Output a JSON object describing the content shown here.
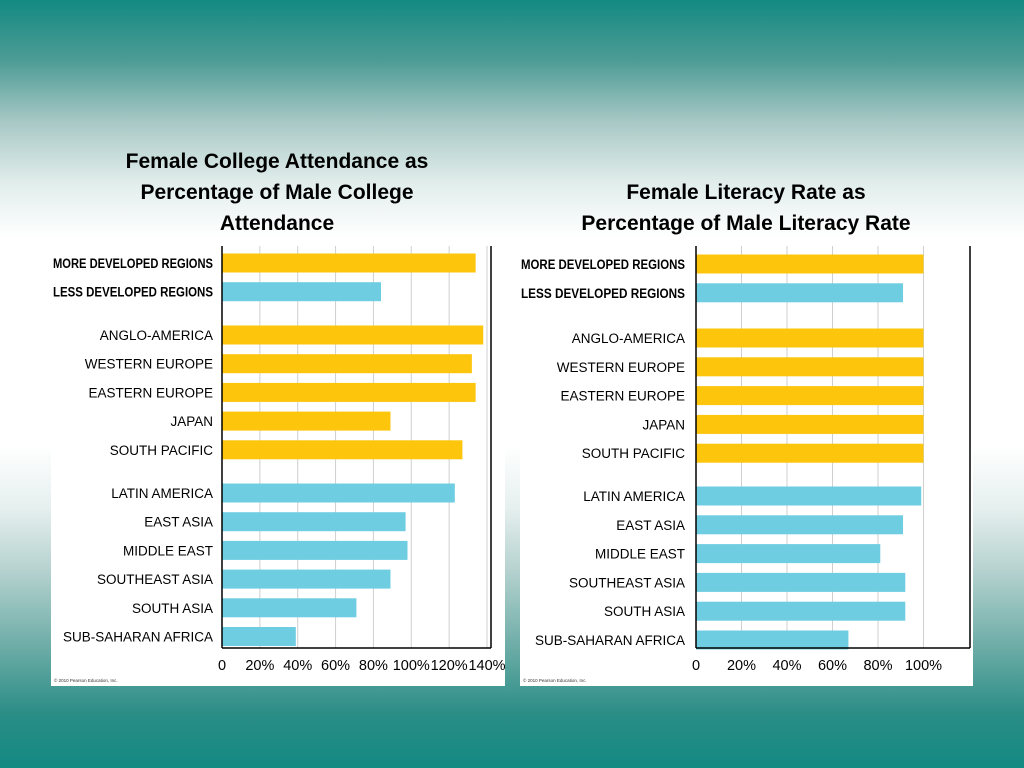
{
  "titles": {
    "left_lines": [
      "Female College Attendance as",
      "Percentage of Male College",
      "Attendance"
    ],
    "right_lines": [
      "Female Literacy Rate as",
      "Percentage of Male Literacy Rate"
    ]
  },
  "colors": {
    "developed": "#fdc50c",
    "developing": "#6fcde2",
    "grid": "#cfcfcf",
    "frame": "#000000",
    "text": "#000000"
  },
  "chart_data": [
    {
      "type": "bar",
      "orientation": "horizontal",
      "title": "Female College Attendance as Percentage of Male College Attendance",
      "categories": [
        "MORE DEVELOPED REGIONS",
        "LESS DEVELOPED REGIONS",
        "ANGLO-AMERICA",
        "WESTERN EUROPE",
        "EASTERN EUROPE",
        "JAPAN",
        "SOUTH PACIFIC",
        "LATIN AMERICA",
        "EAST ASIA",
        "MIDDLE EAST",
        "SOUTHEAST ASIA",
        "SOUTH ASIA",
        "SUB-SAHARAN AFRICA"
      ],
      "bold_categories": [
        "MORE DEVELOPED REGIONS",
        "LESS DEVELOPED REGIONS"
      ],
      "groups": [
        [
          0,
          1
        ],
        [
          2,
          3,
          4,
          5,
          6
        ],
        [
          7,
          8,
          9,
          10,
          11,
          12
        ]
      ],
      "values": [
        134,
        84,
        138,
        132,
        134,
        89,
        127,
        123,
        97,
        98,
        89,
        71,
        39
      ],
      "bar_color_keys": [
        "developed",
        "developing",
        "developed",
        "developed",
        "developed",
        "developed",
        "developed",
        "developing",
        "developing",
        "developing",
        "developing",
        "developing",
        "developing"
      ],
      "xlim": [
        0,
        140
      ],
      "tick_values": [
        0,
        20,
        40,
        60,
        80,
        100,
        120,
        140
      ],
      "tick_labels": [
        "0",
        "20%",
        "40%",
        "60%",
        "80%",
        "100%",
        "120%",
        "140%"
      ],
      "grid": true,
      "credit": "© 2010 Pearson Education, Inc."
    },
    {
      "type": "bar",
      "orientation": "horizontal",
      "title": "Female Literacy Rate as Percentage of Male Literacy Rate",
      "categories": [
        "MORE DEVELOPED REGIONS",
        "LESS DEVELOPED REGIONS",
        "ANGLO-AMERICA",
        "WESTERN EUROPE",
        "EASTERN EUROPE",
        "JAPAN",
        "SOUTH PACIFIC",
        "LATIN AMERICA",
        "EAST ASIA",
        "MIDDLE EAST",
        "SOUTHEAST ASIA",
        "SOUTH ASIA",
        "SUB-SAHARAN AFRICA"
      ],
      "bold_categories": [
        "MORE DEVELOPED REGIONS",
        "LESS DEVELOPED REGIONS"
      ],
      "groups": [
        [
          0,
          1
        ],
        [
          2,
          3,
          4,
          5,
          6
        ],
        [
          7,
          8,
          9,
          10,
          11,
          12
        ]
      ],
      "values": [
        100,
        91,
        100,
        100,
        100,
        100,
        100,
        99,
        91,
        81,
        92,
        92,
        67
      ],
      "bar_color_keys": [
        "developed",
        "developing",
        "developed",
        "developed",
        "developed",
        "developed",
        "developed",
        "developing",
        "developing",
        "developing",
        "developing",
        "developing",
        "developing"
      ],
      "xlim": [
        0,
        120
      ],
      "tick_values": [
        0,
        20,
        40,
        60,
        80,
        100
      ],
      "tick_labels": [
        "0",
        "20%",
        "40%",
        "60%",
        "80%",
        "100%"
      ],
      "grid": true,
      "credit": "© 2010 Pearson Education, Inc."
    }
  ]
}
